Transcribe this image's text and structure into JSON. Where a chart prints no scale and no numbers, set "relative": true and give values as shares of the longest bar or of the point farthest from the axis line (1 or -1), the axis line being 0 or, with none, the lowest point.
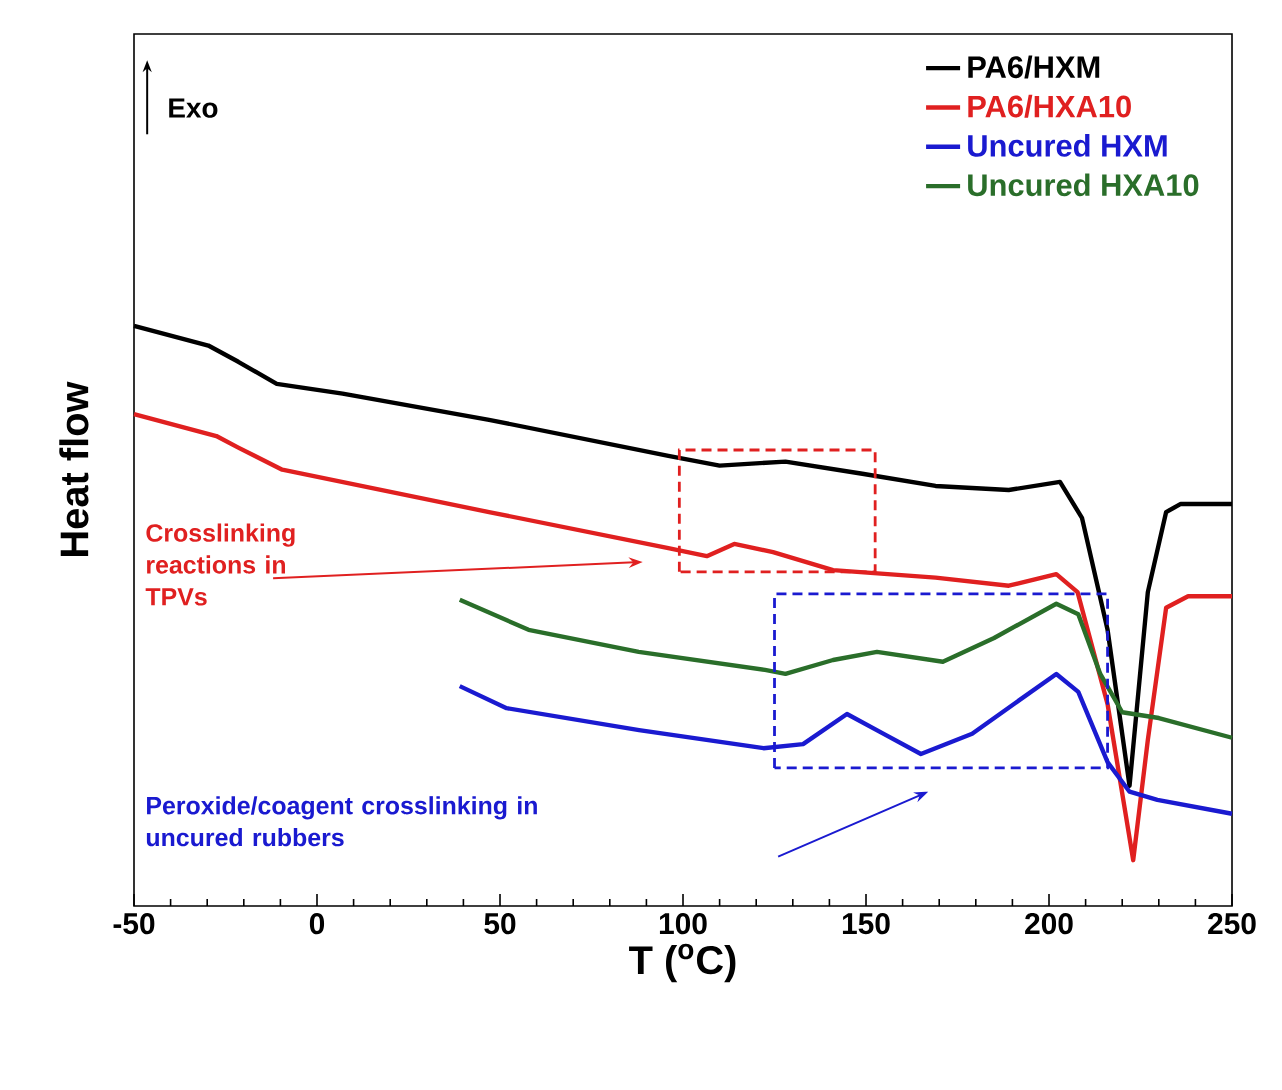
{
  "chart_data": {
    "type": "line",
    "relative": true,
    "xlabel": "T ($^{o}$C)",
    "ylabel": "Heat flow",
    "xlim": [
      -50,
      250
    ],
    "xticks": [
      -50,
      0,
      50,
      100,
      150,
      200,
      250
    ],
    "grid": false,
    "legend": "top right",
    "line_style": "solid",
    "annotations": [
      "Exo",
      "Crosslinking reactions in TPVs",
      "Peroxide/coagent crosslinking in uncured rubbers"
    ],
    "series": [
      {
        "name": "PA6/HXM",
        "color": "#000000",
        "x": [
          -50,
          -29.7,
          -21.5,
          -11,
          7,
          47,
          96,
          110,
          128,
          149,
          169,
          189,
          203,
          209,
          216,
          222,
          227,
          232,
          236,
          250
        ],
        "values": [
          1.0,
          0.966,
          0.938,
          0.9,
          0.883,
          0.838,
          0.776,
          0.759,
          0.766,
          0.745,
          0.724,
          0.717,
          0.731,
          0.669,
          0.476,
          0.207,
          0.541,
          0.679,
          0.693,
          0.693
        ]
      },
      {
        "name": "PA6/HXA10",
        "color": "#e02020",
        "x": [
          -50,
          -27.5,
          -21.5,
          -9.5,
          47,
          96,
          106.5,
          114,
          124.6,
          141,
          169,
          189,
          202,
          207.8,
          216,
          223,
          227,
          232,
          238,
          250
        ],
        "values": [
          0.848,
          0.81,
          0.79,
          0.752,
          0.679,
          0.617,
          0.603,
          0.624,
          0.61,
          0.579,
          0.566,
          0.552,
          0.572,
          0.541,
          0.348,
          0.079,
          0.286,
          0.514,
          0.534,
          0.534
        ]
      },
      {
        "name": "Uncured HXM",
        "color": "#1a1ad0",
        "x": [
          39,
          51.8,
          88,
          122,
          132.8,
          144.8,
          154.7,
          165,
          179,
          202,
          208,
          216,
          222,
          229.6,
          250
        ],
        "values": [
          0.379,
          0.341,
          0.303,
          0.272,
          0.279,
          0.331,
          0.297,
          0.262,
          0.297,
          0.4,
          0.369,
          0.248,
          0.197,
          0.183,
          0.159
        ]
      },
      {
        "name": "Uncured HXA10",
        "color": "#2a6e2a",
        "x": [
          39,
          57.8,
          87.9,
          122.4,
          128,
          141,
          153,
          171,
          185,
          202,
          208,
          214,
          220,
          230,
          250
        ],
        "values": [
          0.528,
          0.476,
          0.438,
          0.407,
          0.4,
          0.424,
          0.438,
          0.421,
          0.462,
          0.521,
          0.503,
          0.4,
          0.334,
          0.324,
          0.29
        ]
      }
    ]
  }
}
